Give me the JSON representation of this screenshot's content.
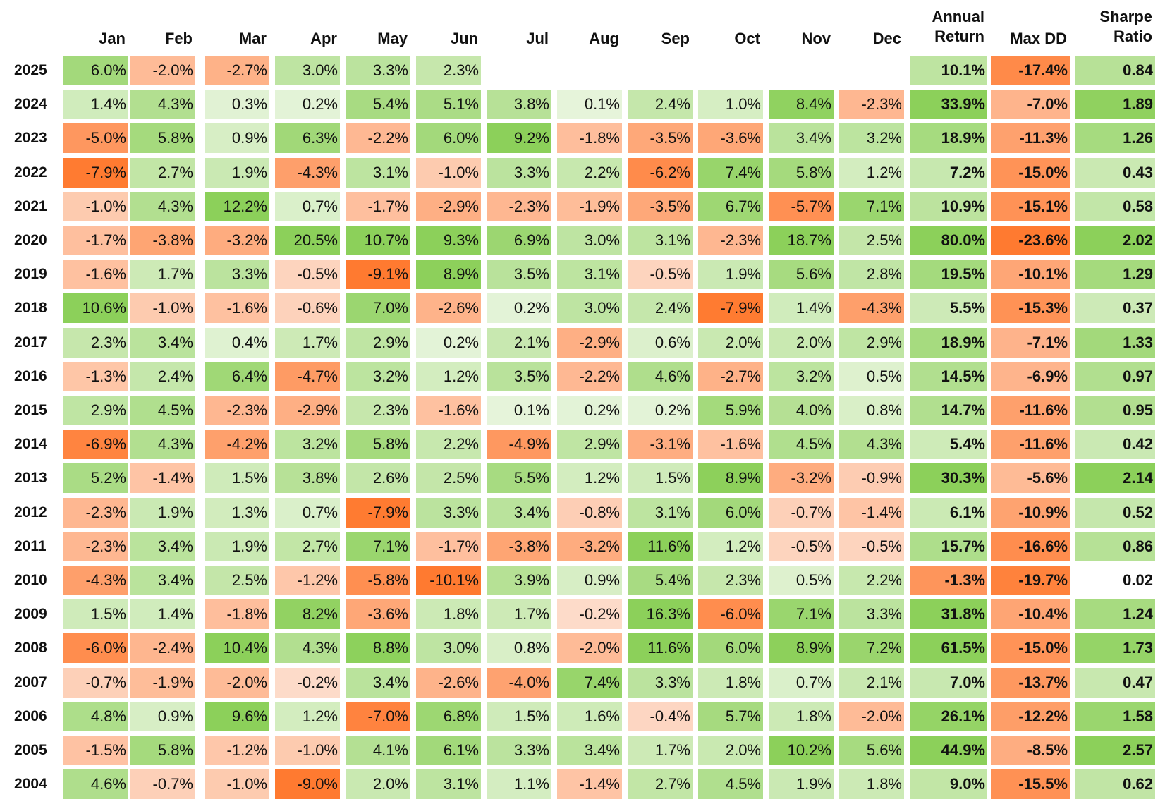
{
  "chart_data": {
    "type": "heatmap",
    "column_headers": [
      "Jan",
      "Feb",
      "Mar",
      "Apr",
      "May",
      "Jun",
      "Jul",
      "Aug",
      "Sep",
      "Oct",
      "Nov",
      "Dec",
      "Annual\nReturn",
      "Max DD",
      "Sharpe\nRatio"
    ],
    "rows": [
      {
        "year": "2025",
        "months": [
          "6.0%",
          "-2.0%",
          "-2.7%",
          "3.0%",
          "3.3%",
          "2.3%",
          "",
          "",
          "",
          "",
          "",
          ""
        ],
        "annual_return": "10.1%",
        "max_dd": "-17.4%",
        "sharpe": "0.84"
      },
      {
        "year": "2024",
        "months": [
          "1.4%",
          "4.3%",
          "0.3%",
          "0.2%",
          "5.4%",
          "5.1%",
          "3.8%",
          "0.1%",
          "2.4%",
          "1.0%",
          "8.4%",
          "-2.3%"
        ],
        "annual_return": "33.9%",
        "max_dd": "-7.0%",
        "sharpe": "1.89"
      },
      {
        "year": "2023",
        "months": [
          "-5.0%",
          "5.8%",
          "0.9%",
          "6.3%",
          "-2.2%",
          "6.0%",
          "9.2%",
          "-1.8%",
          "-3.5%",
          "-3.6%",
          "3.4%",
          "3.2%"
        ],
        "annual_return": "18.9%",
        "max_dd": "-11.3%",
        "sharpe": "1.26"
      },
      {
        "year": "2022",
        "months": [
          "-7.9%",
          "2.7%",
          "1.9%",
          "-4.3%",
          "3.1%",
          "-1.0%",
          "3.3%",
          "2.2%",
          "-6.2%",
          "7.4%",
          "5.8%",
          "1.2%"
        ],
        "annual_return": "7.2%",
        "max_dd": "-15.0%",
        "sharpe": "0.43"
      },
      {
        "year": "2021",
        "months": [
          "-1.0%",
          "4.3%",
          "12.2%",
          "0.7%",
          "-1.7%",
          "-2.9%",
          "-2.3%",
          "-1.9%",
          "-3.5%",
          "6.7%",
          "-5.7%",
          "7.1%"
        ],
        "annual_return": "10.9%",
        "max_dd": "-15.1%",
        "sharpe": "0.58"
      },
      {
        "year": "2020",
        "months": [
          "-1.7%",
          "-3.8%",
          "-3.2%",
          "20.5%",
          "10.7%",
          "9.3%",
          "6.9%",
          "3.0%",
          "3.1%",
          "-2.3%",
          "18.7%",
          "2.5%"
        ],
        "annual_return": "80.0%",
        "max_dd": "-23.6%",
        "sharpe": "2.02"
      },
      {
        "year": "2019",
        "months": [
          "-1.6%",
          "1.7%",
          "3.3%",
          "-0.5%",
          "-9.1%",
          "8.9%",
          "3.5%",
          "3.1%",
          "-0.5%",
          "1.9%",
          "5.6%",
          "2.8%"
        ],
        "annual_return": "19.5%",
        "max_dd": "-10.1%",
        "sharpe": "1.29"
      },
      {
        "year": "2018",
        "months": [
          "10.6%",
          "-1.0%",
          "-1.6%",
          "-0.6%",
          "7.0%",
          "-2.6%",
          "0.2%",
          "3.0%",
          "2.4%",
          "-7.9%",
          "1.4%",
          "-4.3%"
        ],
        "annual_return": "5.5%",
        "max_dd": "-15.3%",
        "sharpe": "0.37"
      },
      {
        "year": "2017",
        "months": [
          "2.3%",
          "3.4%",
          "0.4%",
          "1.7%",
          "2.9%",
          "0.2%",
          "2.1%",
          "-2.9%",
          "0.6%",
          "2.0%",
          "2.0%",
          "2.9%"
        ],
        "annual_return": "18.9%",
        "max_dd": "-7.1%",
        "sharpe": "1.33"
      },
      {
        "year": "2016",
        "months": [
          "-1.3%",
          "2.4%",
          "6.4%",
          "-4.7%",
          "3.2%",
          "1.2%",
          "3.5%",
          "-2.2%",
          "4.6%",
          "-2.7%",
          "3.2%",
          "0.5%"
        ],
        "annual_return": "14.5%",
        "max_dd": "-6.9%",
        "sharpe": "0.97"
      },
      {
        "year": "2015",
        "months": [
          "2.9%",
          "4.5%",
          "-2.3%",
          "-2.9%",
          "2.3%",
          "-1.6%",
          "0.1%",
          "0.2%",
          "0.2%",
          "5.9%",
          "4.0%",
          "0.8%"
        ],
        "annual_return": "14.7%",
        "max_dd": "-11.6%",
        "sharpe": "0.95"
      },
      {
        "year": "2014",
        "months": [
          "-6.9%",
          "4.3%",
          "-4.2%",
          "3.2%",
          "5.8%",
          "2.2%",
          "-4.9%",
          "2.9%",
          "-3.1%",
          "-1.6%",
          "4.5%",
          "4.3%"
        ],
        "annual_return": "5.4%",
        "max_dd": "-11.6%",
        "sharpe": "0.42"
      },
      {
        "year": "2013",
        "months": [
          "5.2%",
          "-1.4%",
          "1.5%",
          "3.8%",
          "2.6%",
          "2.5%",
          "5.5%",
          "1.2%",
          "1.5%",
          "8.9%",
          "-3.2%",
          "-0.9%"
        ],
        "annual_return": "30.3%",
        "max_dd": "-5.6%",
        "sharpe": "2.14"
      },
      {
        "year": "2012",
        "months": [
          "-2.3%",
          "1.9%",
          "1.3%",
          "0.7%",
          "-7.9%",
          "3.3%",
          "3.4%",
          "-0.8%",
          "3.1%",
          "6.0%",
          "-0.7%",
          "-1.4%"
        ],
        "annual_return": "6.1%",
        "max_dd": "-10.9%",
        "sharpe": "0.52"
      },
      {
        "year": "2011",
        "months": [
          "-2.3%",
          "3.4%",
          "1.9%",
          "2.7%",
          "7.1%",
          "-1.7%",
          "-3.8%",
          "-3.2%",
          "11.6%",
          "1.2%",
          "-0.5%",
          "-0.5%"
        ],
        "annual_return": "15.7%",
        "max_dd": "-16.6%",
        "sharpe": "0.86"
      },
      {
        "year": "2010",
        "months": [
          "-4.3%",
          "3.4%",
          "2.5%",
          "-1.2%",
          "-5.8%",
          "-10.1%",
          "3.9%",
          "0.9%",
          "5.4%",
          "2.3%",
          "0.5%",
          "2.2%"
        ],
        "annual_return": "-1.3%",
        "max_dd": "-19.7%",
        "sharpe": "0.02"
      },
      {
        "year": "2009",
        "months": [
          "1.5%",
          "1.4%",
          "-1.8%",
          "8.2%",
          "-3.6%",
          "1.8%",
          "1.7%",
          "-0.2%",
          "16.3%",
          "-6.0%",
          "7.1%",
          "3.3%"
        ],
        "annual_return": "31.8%",
        "max_dd": "-10.4%",
        "sharpe": "1.24"
      },
      {
        "year": "2008",
        "months": [
          "-6.0%",
          "-2.4%",
          "10.4%",
          "4.3%",
          "8.8%",
          "3.0%",
          "0.8%",
          "-2.0%",
          "11.6%",
          "6.0%",
          "8.9%",
          "7.2%"
        ],
        "annual_return": "61.5%",
        "max_dd": "-15.0%",
        "sharpe": "1.73"
      },
      {
        "year": "2007",
        "months": [
          "-0.7%",
          "-1.9%",
          "-2.0%",
          "-0.2%",
          "3.4%",
          "-2.6%",
          "-4.0%",
          "7.4%",
          "3.3%",
          "1.8%",
          "0.7%",
          "2.1%"
        ],
        "annual_return": "7.0%",
        "max_dd": "-13.7%",
        "sharpe": "0.47"
      },
      {
        "year": "2006",
        "months": [
          "4.8%",
          "0.9%",
          "9.6%",
          "1.2%",
          "-7.0%",
          "6.8%",
          "1.5%",
          "1.6%",
          "-0.4%",
          "5.7%",
          "1.8%",
          "-2.0%"
        ],
        "annual_return": "26.1%",
        "max_dd": "-12.2%",
        "sharpe": "1.58"
      },
      {
        "year": "2005",
        "months": [
          "-1.5%",
          "5.8%",
          "-1.2%",
          "-1.0%",
          "4.1%",
          "6.1%",
          "3.3%",
          "3.4%",
          "1.7%",
          "2.0%",
          "10.2%",
          "5.6%"
        ],
        "annual_return": "44.9%",
        "max_dd": "-8.5%",
        "sharpe": "2.57"
      },
      {
        "year": "2004",
        "months": [
          "4.6%",
          "-0.7%",
          "-1.0%",
          "-9.0%",
          "2.0%",
          "3.1%",
          "1.1%",
          "-1.4%",
          "2.7%",
          "4.5%",
          "1.9%",
          "1.8%"
        ],
        "annual_return": "9.0%",
        "max_dd": "-15.5%",
        "sharpe": "0.62"
      }
    ],
    "colors": {
      "positive_strong": "#8cd05a",
      "positive_light": "#eaf6e0",
      "neutral": "#ffffff",
      "negative_light": "#fde3d6",
      "negative_strong": "#ff7a30"
    }
  }
}
